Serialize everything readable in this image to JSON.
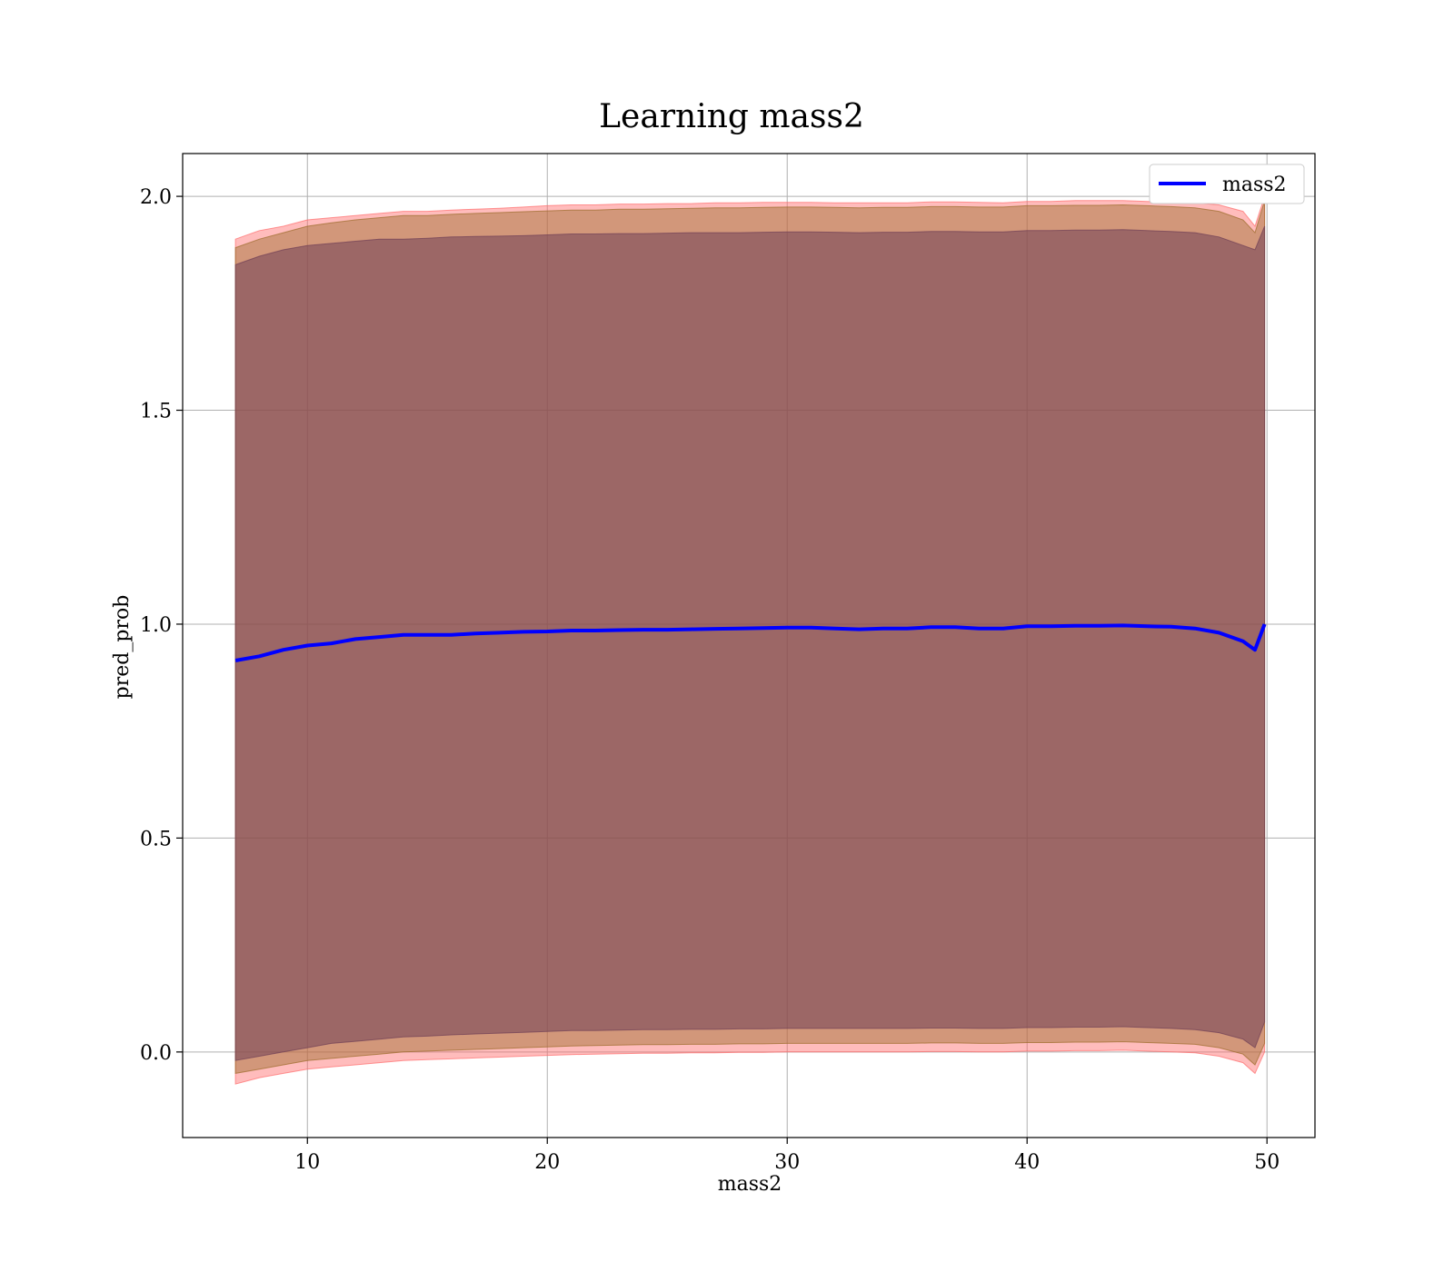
{
  "chart_data": {
    "type": "line",
    "title": "Learning mass2",
    "xlabel": "mass2",
    "ylabel": "pred_prob",
    "xlim": [
      4.8,
      52.0
    ],
    "ylim": [
      -0.2,
      2.1
    ],
    "xticks": [
      10,
      20,
      30,
      40,
      50
    ],
    "xtick_labels": [
      "10",
      "20",
      "30",
      "40",
      "50"
    ],
    "yticks": [
      0.0,
      0.5,
      1.0,
      1.5,
      2.0
    ],
    "ytick_labels": [
      "0.0",
      "0.5",
      "1.0",
      "1.5",
      "2.0"
    ],
    "grid": true,
    "legend_position": "top-right",
    "series": [
      {
        "name": "mass2",
        "color": "#0000ff",
        "x": [
          7.0,
          8.0,
          9.0,
          10.0,
          11.0,
          12.0,
          13.0,
          14.0,
          15.0,
          16.0,
          17.0,
          18.0,
          19.0,
          20.0,
          21.0,
          22.0,
          23.0,
          24.0,
          25.0,
          26.0,
          27.0,
          28.0,
          29.0,
          30.0,
          31.0,
          32.0,
          33.0,
          34.0,
          35.0,
          36.0,
          37.0,
          38.0,
          39.0,
          40.0,
          41.0,
          42.0,
          43.0,
          44.0,
          45.0,
          46.0,
          47.0,
          48.0,
          49.0,
          49.5,
          49.9
        ],
        "y": [
          0.915,
          0.925,
          0.94,
          0.95,
          0.955,
          0.965,
          0.97,
          0.975,
          0.975,
          0.975,
          0.978,
          0.98,
          0.982,
          0.983,
          0.985,
          0.985,
          0.986,
          0.987,
          0.987,
          0.988,
          0.989,
          0.99,
          0.991,
          0.992,
          0.992,
          0.99,
          0.988,
          0.99,
          0.99,
          0.993,
          0.993,
          0.99,
          0.99,
          0.995,
          0.995,
          0.996,
          0.996,
          0.997,
          0.995,
          0.994,
          0.99,
          0.98,
          0.96,
          0.94,
          1.0
        ]
      }
    ],
    "bands": [
      {
        "color": "#ff6b6b",
        "opacity": 0.45,
        "x": [
          7.0,
          8.0,
          9.0,
          10.0,
          11.0,
          12.0,
          13.0,
          14.0,
          15.0,
          16.0,
          17.0,
          18.0,
          19.0,
          20.0,
          21.0,
          22.0,
          23.0,
          24.0,
          25.0,
          26.0,
          27.0,
          28.0,
          29.0,
          30.0,
          31.0,
          32.0,
          33.0,
          34.0,
          35.0,
          36.0,
          37.0,
          38.0,
          39.0,
          40.0,
          41.0,
          42.0,
          43.0,
          44.0,
          45.0,
          46.0,
          47.0,
          48.0,
          49.0,
          49.5,
          49.9
        ],
        "upper": [
          1.9,
          1.92,
          1.93,
          1.945,
          1.95,
          1.955,
          1.96,
          1.965,
          1.965,
          1.968,
          1.97,
          1.972,
          1.975,
          1.978,
          1.98,
          1.98,
          1.982,
          1.982,
          1.983,
          1.983,
          1.985,
          1.985,
          1.986,
          1.986,
          1.986,
          1.985,
          1.985,
          1.985,
          1.985,
          1.987,
          1.987,
          1.986,
          1.985,
          1.988,
          1.988,
          1.99,
          1.99,
          1.99,
          1.988,
          1.986,
          1.985,
          1.98,
          1.965,
          1.93,
          2.0
        ],
        "lower": [
          -0.075,
          -0.06,
          -0.05,
          -0.04,
          -0.035,
          -0.03,
          -0.025,
          -0.02,
          -0.018,
          -0.016,
          -0.014,
          -0.012,
          -0.01,
          -0.008,
          -0.006,
          -0.005,
          -0.004,
          -0.003,
          -0.003,
          -0.002,
          -0.002,
          -0.001,
          -0.001,
          0.0,
          0.0,
          0.0,
          0.0,
          0.0,
          0.0,
          0.001,
          0.001,
          0.0,
          0.0,
          0.002,
          0.002,
          0.003,
          0.003,
          0.004,
          0.002,
          0.0,
          -0.002,
          -0.01,
          -0.025,
          -0.05,
          0.0
        ]
      },
      {
        "color": "#9b6b2a",
        "opacity": 0.45,
        "x": [
          7.0,
          8.0,
          9.0,
          10.0,
          11.0,
          12.0,
          13.0,
          14.0,
          15.0,
          16.0,
          17.0,
          18.0,
          19.0,
          20.0,
          21.0,
          22.0,
          23.0,
          24.0,
          25.0,
          26.0,
          27.0,
          28.0,
          29.0,
          30.0,
          31.0,
          32.0,
          33.0,
          34.0,
          35.0,
          36.0,
          37.0,
          38.0,
          39.0,
          40.0,
          41.0,
          42.0,
          43.0,
          44.0,
          45.0,
          46.0,
          47.0,
          48.0,
          49.0,
          49.5,
          49.9
        ],
        "upper": [
          1.88,
          1.9,
          1.915,
          1.93,
          1.938,
          1.945,
          1.95,
          1.955,
          1.955,
          1.958,
          1.96,
          1.962,
          1.964,
          1.966,
          1.968,
          1.968,
          1.97,
          1.97,
          1.971,
          1.972,
          1.973,
          1.973,
          1.974,
          1.975,
          1.975,
          1.974,
          1.973,
          1.974,
          1.974,
          1.976,
          1.976,
          1.975,
          1.975,
          1.978,
          1.978,
          1.979,
          1.979,
          1.98,
          1.978,
          1.976,
          1.973,
          1.965,
          1.945,
          1.915,
          1.99
        ],
        "lower": [
          -0.05,
          -0.04,
          -0.03,
          -0.02,
          -0.015,
          -0.01,
          -0.005,
          0.0,
          0.002,
          0.004,
          0.006,
          0.008,
          0.01,
          0.012,
          0.014,
          0.015,
          0.016,
          0.017,
          0.017,
          0.018,
          0.018,
          0.019,
          0.019,
          0.02,
          0.02,
          0.02,
          0.02,
          0.02,
          0.02,
          0.021,
          0.021,
          0.02,
          0.02,
          0.022,
          0.022,
          0.023,
          0.023,
          0.024,
          0.022,
          0.02,
          0.018,
          0.01,
          -0.005,
          -0.03,
          0.02
        ]
      },
      {
        "color": "#6f3f55",
        "opacity": 0.55,
        "x": [
          7.0,
          8.0,
          9.0,
          10.0,
          11.0,
          12.0,
          13.0,
          14.0,
          15.0,
          16.0,
          17.0,
          18.0,
          19.0,
          20.0,
          21.0,
          22.0,
          23.0,
          24.0,
          25.0,
          26.0,
          27.0,
          28.0,
          29.0,
          30.0,
          31.0,
          32.0,
          33.0,
          34.0,
          35.0,
          36.0,
          37.0,
          38.0,
          39.0,
          40.0,
          41.0,
          42.0,
          43.0,
          44.0,
          45.0,
          46.0,
          47.0,
          48.0,
          49.0,
          49.5,
          49.9
        ],
        "upper": [
          1.84,
          1.86,
          1.875,
          1.885,
          1.89,
          1.895,
          1.9,
          1.9,
          1.902,
          1.905,
          1.906,
          1.907,
          1.908,
          1.91,
          1.912,
          1.912,
          1.913,
          1.913,
          1.914,
          1.915,
          1.915,
          1.915,
          1.916,
          1.917,
          1.917,
          1.916,
          1.915,
          1.916,
          1.916,
          1.918,
          1.918,
          1.917,
          1.917,
          1.92,
          1.92,
          1.921,
          1.921,
          1.922,
          1.92,
          1.918,
          1.915,
          1.905,
          1.885,
          1.875,
          1.93
        ],
        "lower": [
          -0.02,
          -0.01,
          0.0,
          0.01,
          0.02,
          0.025,
          0.03,
          0.035,
          0.037,
          0.04,
          0.042,
          0.044,
          0.046,
          0.048,
          0.05,
          0.05,
          0.051,
          0.052,
          0.052,
          0.053,
          0.053,
          0.054,
          0.054,
          0.055,
          0.055,
          0.055,
          0.055,
          0.055,
          0.055,
          0.056,
          0.056,
          0.055,
          0.055,
          0.057,
          0.057,
          0.058,
          0.058,
          0.059,
          0.057,
          0.055,
          0.052,
          0.045,
          0.03,
          0.01,
          0.07
        ]
      }
    ]
  }
}
